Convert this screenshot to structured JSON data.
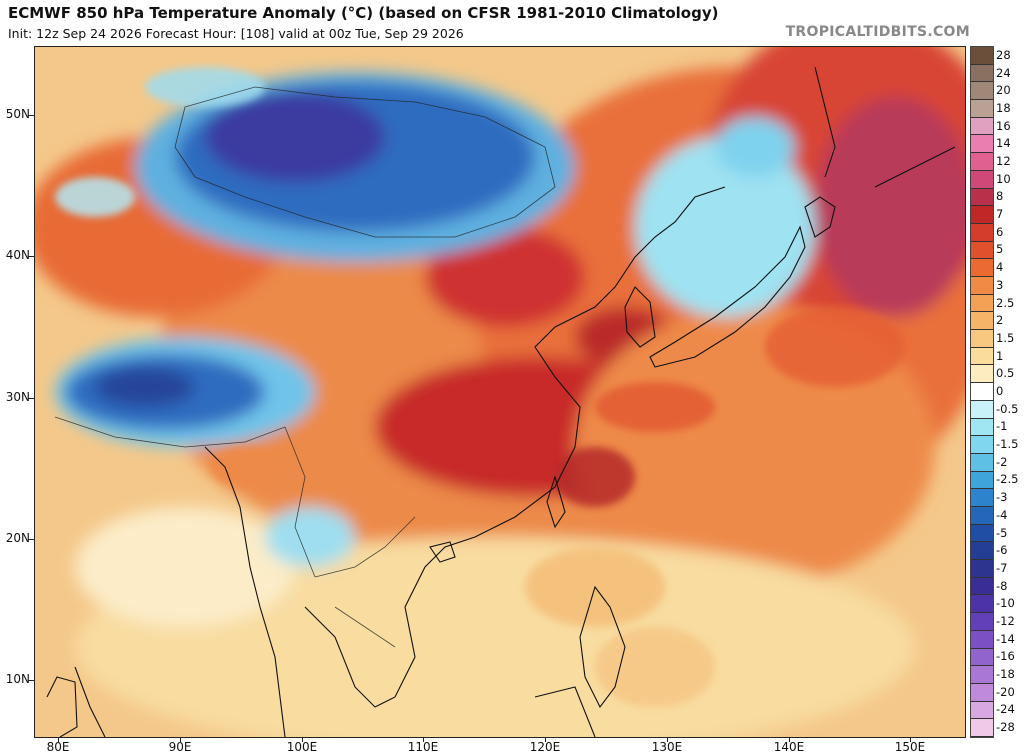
{
  "header": {
    "title": "ECMWF 850 hPa Temperature Anomaly (°C) (based on CFSR 1981-2010 Climatology)",
    "subtitle": "Init: 12z Sep 24 2026   Forecast Hour: [108]   valid at 00z Tue, Sep 29 2026",
    "brand": "TROPICALTIDBITS.COM"
  },
  "map": {
    "lat_labels": [
      "50N",
      "40N",
      "30N",
      "20N",
      "10N"
    ],
    "lon_labels": [
      "80E",
      "90E",
      "100E",
      "110E",
      "120E",
      "130E",
      "140E",
      "150E"
    ],
    "lat_range": [
      6,
      56
    ],
    "lon_range": [
      78,
      155
    ]
  },
  "colorbar": {
    "labels": [
      "28",
      "24",
      "20",
      "18",
      "16",
      "14",
      "12",
      "10",
      "8",
      "7",
      "6",
      "5",
      "4",
      "3",
      "2.5",
      "2",
      "1.5",
      "1",
      "0.5",
      "0",
      "-0.5",
      "-1",
      "-1.5",
      "-2",
      "-2.5",
      "-3",
      "-4",
      "-5",
      "-6",
      "-7",
      "-8",
      "-10",
      "-12",
      "-14",
      "-16",
      "-18",
      "-20",
      "-24",
      "-28"
    ],
    "colors": [
      "#6b4f3a",
      "#8a7060",
      "#a08878",
      "#b9a294",
      "#e0a0c0",
      "#e87fb0",
      "#e06090",
      "#d04878",
      "#b8304a",
      "#c02828",
      "#d43c2c",
      "#e0502c",
      "#ea6a32",
      "#f08a44",
      "#f4a055",
      "#f6b468",
      "#f8c880",
      "#fadc9c",
      "#fcecc0",
      "#ffffff",
      "#c8f2f8",
      "#9fe6f2",
      "#7fd6ee",
      "#5fc0e6",
      "#3fa4da",
      "#2e84cc",
      "#2666b8",
      "#1f4ea4",
      "#243e96",
      "#2c3490",
      "#3a2e94",
      "#4c34a8",
      "#6240b8",
      "#7a50c4",
      "#9064cc",
      "#a878d4",
      "#c08ada",
      "#d8a8e2",
      "#f0c8e8"
    ]
  }
}
